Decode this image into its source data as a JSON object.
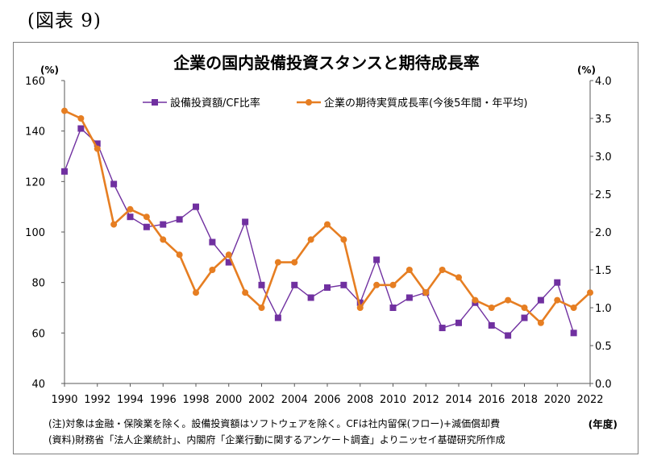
{
  "figure_label": "(図表 9)",
  "chart_data": {
    "type": "line",
    "title": "企業の国内設備投資スタンスと期待成長率",
    "y_left_unit": "(%)",
    "y_right_unit": "(%)",
    "x_unit": "(年度)",
    "ylim_left": [
      40,
      160
    ],
    "ylim_right": [
      0.0,
      4.0
    ],
    "yticks_left": [
      "40",
      "60",
      "80",
      "100",
      "120",
      "140",
      "160"
    ],
    "yticks_right": [
      "0.0",
      "0.5",
      "1.0",
      "1.5",
      "2.0",
      "2.5",
      "3.0",
      "3.5",
      "4.0"
    ],
    "xticks": [
      "1990",
      "1992",
      "1994",
      "1996",
      "1998",
      "2000",
      "2002",
      "2004",
      "2006",
      "2008",
      "2010",
      "2012",
      "2014",
      "2016",
      "2018",
      "2020",
      "2022"
    ],
    "legend_placement": "top",
    "series": [
      {
        "name": "設備投資額/CF比率",
        "axis": "left",
        "color": "#7030a0",
        "marker": "square",
        "x": [
          1990,
          1991,
          1992,
          1993,
          1994,
          1995,
          1996,
          1997,
          1998,
          1999,
          2000,
          2001,
          2002,
          2003,
          2004,
          2005,
          2006,
          2007,
          2008,
          2009,
          2010,
          2011,
          2012,
          2013,
          2014,
          2015,
          2016,
          2017,
          2018,
          2019,
          2020,
          2021
        ],
        "values": [
          124,
          141,
          135,
          119,
          106,
          102,
          103,
          105,
          110,
          96,
          88,
          104,
          79,
          66,
          79,
          74,
          78,
          79,
          72,
          89,
          70,
          74,
          76,
          62,
          64,
          72,
          63,
          59,
          66,
          73,
          80,
          60
        ]
      },
      {
        "name": "企業の期待実質成長率(今後5年間・年平均)",
        "axis": "right",
        "color": "#e67e22",
        "marker": "circle",
        "x": [
          1990,
          1991,
          1992,
          1993,
          1994,
          1995,
          1996,
          1997,
          1998,
          1999,
          2000,
          2001,
          2002,
          2003,
          2004,
          2005,
          2006,
          2007,
          2008,
          2009,
          2010,
          2011,
          2012,
          2013,
          2014,
          2015,
          2016,
          2017,
          2018,
          2019,
          2020,
          2021,
          2022
        ],
        "values": [
          3.6,
          3.5,
          3.1,
          2.1,
          2.3,
          2.2,
          1.9,
          1.7,
          1.2,
          1.5,
          1.7,
          1.2,
          1.0,
          1.6,
          1.6,
          1.9,
          2.1,
          1.9,
          1.0,
          1.3,
          1.3,
          1.5,
          1.2,
          1.5,
          1.4,
          1.1,
          1.0,
          1.1,
          1.0,
          0.8,
          1.1,
          1.0,
          1.2
        ]
      }
    ]
  },
  "notes": [
    "(注)対象は金融・保険業を除く。設備投資額はソフトウェアを除く。CFは社内留保(フロー)+減価償却費",
    "(資料)財務省「法人企業統計」、内閣府「企業行動に関するアンケート調査」よりニッセイ基礎研究所作成"
  ]
}
